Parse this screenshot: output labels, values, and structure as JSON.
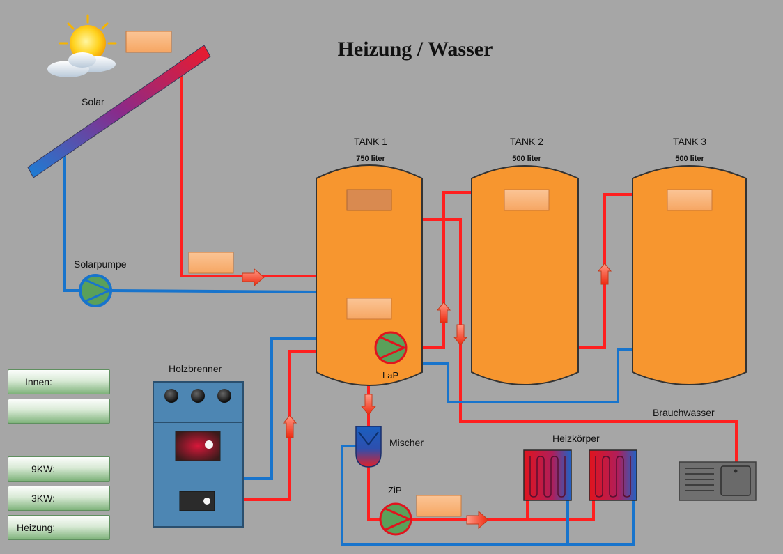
{
  "title": "Heizung / Wasser",
  "labels": {
    "solar": "Solar",
    "solarpumpe": "Solarpumpe",
    "holzbrenner": "Holzbrenner",
    "lap": "LaP",
    "mischer": "Mischer",
    "zip": "ZiP",
    "heizkoerper": "Heizkörper",
    "brauchwasser": "Brauchwasser"
  },
  "tanks": [
    {
      "name": "TANK 1",
      "capacity": "750 liter"
    },
    {
      "name": "TANK 2",
      "capacity": "500 liter"
    },
    {
      "name": "TANK 3",
      "capacity": "500 liter"
    }
  ],
  "panels": {
    "innen": "Innen:",
    "empty": "",
    "kw9": "9KW:",
    "kw3": "3KW:",
    "heizung": "Heizung:"
  },
  "colors": {
    "background": "#a6a6a6",
    "hot_pipe": "#ff1f1f",
    "cold_pipe": "#1874cc",
    "tank": "#f7962f",
    "pump": "#5aa05a",
    "boiler": "#4d86b3",
    "value_box": "#f9b27a",
    "title": "#111111"
  }
}
